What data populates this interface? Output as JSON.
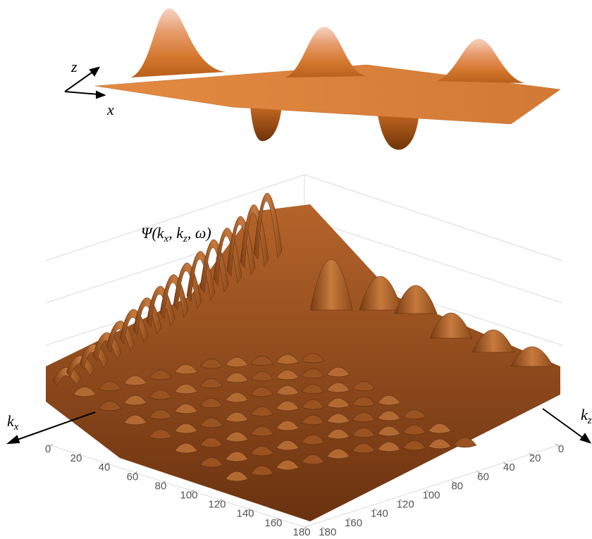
{
  "top_panel": {
    "axis_labels": {
      "z": "z",
      "x": "x"
    }
  },
  "bottom_panel": {
    "function_label": [
      "Ψ",
      "(k",
      "x",
      ", k",
      "z",
      ", ω)"
    ],
    "axis_labels": {
      "kx": [
        "k",
        "x"
      ],
      "kz": [
        "k",
        "z"
      ]
    },
    "left_axis_ticks": [
      0,
      20,
      40,
      60,
      80,
      100,
      120,
      140,
      160,
      180
    ],
    "right_axis_ticks": [
      0,
      20,
      40,
      60,
      80,
      100,
      120,
      140,
      160,
      180
    ]
  }
}
